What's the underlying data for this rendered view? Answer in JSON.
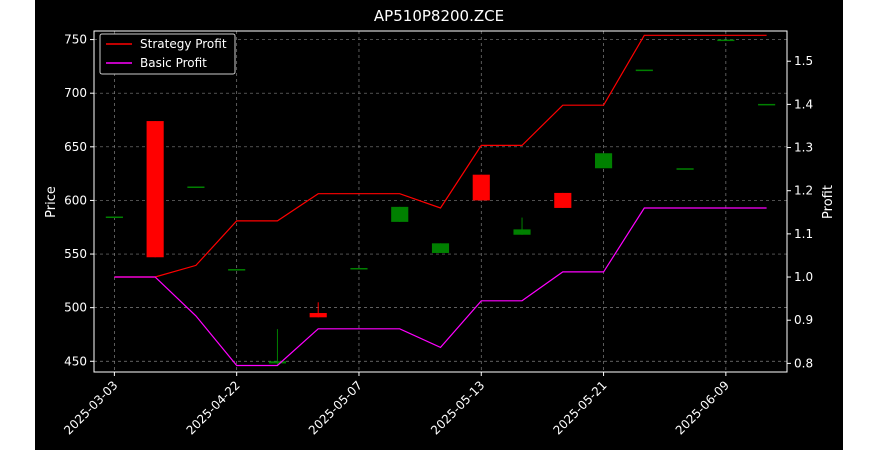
{
  "chart_data": {
    "type": "candlestick",
    "title": "AP510P8200.ZCE",
    "ylabel_left": "Price",
    "ylabel_right": "Profit",
    "x_tick_labels": [
      "2025-03-03",
      "2025-04-22",
      "2025-05-07",
      "2025-05-13",
      "2025-05-21",
      "2025-06-09"
    ],
    "y_left_ticks": [
      450,
      500,
      550,
      600,
      650,
      700,
      750
    ],
    "y_left_range": [
      440,
      758
    ],
    "y_right_ticks": [
      0.8,
      0.9,
      1.0,
      1.1,
      1.2,
      1.3,
      1.4,
      1.5
    ],
    "y_right_range": [
      0.78,
      1.57
    ],
    "grid": true,
    "legend": {
      "position": "top-left",
      "entries": [
        {
          "label": "Strategy Profit",
          "color": "#ff0000"
        },
        {
          "label": "Basic Profit",
          "color": "#ff00ff"
        }
      ]
    },
    "colors": {
      "background": "#000000",
      "up": "#008000",
      "down": "#ff0000",
      "grid": "#808080",
      "axis": "#ffffff"
    },
    "x_range": [
      -0.5,
      16.5
    ],
    "tick_index": [
      0,
      3,
      6,
      9,
      12,
      15
    ],
    "candles": [
      {
        "i": 0,
        "open": 585,
        "close": 585,
        "high": 585,
        "low": 585
      },
      {
        "i": 1,
        "open": 674,
        "close": 547,
        "high": 674,
        "low": 547
      },
      {
        "i": 2,
        "open": 613,
        "close": 613,
        "high": 613,
        "low": 613
      },
      {
        "i": 3,
        "open": 536,
        "close": 536,
        "high": 536,
        "low": 536
      },
      {
        "i": 4,
        "open": 448,
        "close": 450,
        "high": 480,
        "low": 446
      },
      {
        "i": 5,
        "open": 495,
        "close": 491,
        "high": 505,
        "low": 491
      },
      {
        "i": 6,
        "open": 537,
        "close": 537,
        "high": 537,
        "low": 537
      },
      {
        "i": 7,
        "open": 580,
        "close": 594,
        "high": 594,
        "low": 580
      },
      {
        "i": 8,
        "open": 551,
        "close": 560,
        "high": 560,
        "low": 551
      },
      {
        "i": 9,
        "open": 624,
        "close": 600,
        "high": 624,
        "low": 600
      },
      {
        "i": 10,
        "open": 568,
        "close": 573,
        "high": 584,
        "low": 568
      },
      {
        "i": 11,
        "open": 607,
        "close": 593,
        "high": 607,
        "low": 593
      },
      {
        "i": 12,
        "open": 630,
        "close": 644,
        "high": 644,
        "low": 630
      },
      {
        "i": 13,
        "open": 722,
        "close": 722,
        "high": 722,
        "low": 722
      },
      {
        "i": 14,
        "open": 630,
        "close": 630,
        "high": 630,
        "low": 630
      },
      {
        "i": 15,
        "open": 750,
        "close": 750,
        "high": 750,
        "low": 750
      },
      {
        "i": 16,
        "open": 690,
        "close": 690,
        "high": 690,
        "low": 690
      }
    ],
    "series": [
      {
        "name": "Strategy Profit",
        "color": "#ff0000",
        "points": [
          [
            0,
            1.0
          ],
          [
            1,
            1.0
          ],
          [
            2,
            1.027
          ],
          [
            3,
            1.13
          ],
          [
            4,
            1.13
          ],
          [
            5,
            1.193
          ],
          [
            6,
            1.193
          ],
          [
            7,
            1.193
          ],
          [
            8,
            1.16
          ],
          [
            9,
            1.305
          ],
          [
            10,
            1.305
          ],
          [
            11,
            1.398
          ],
          [
            12,
            1.398
          ],
          [
            13,
            1.56
          ],
          [
            14,
            1.56
          ],
          [
            15,
            1.56
          ],
          [
            16,
            1.56
          ]
        ]
      },
      {
        "name": "Basic Profit",
        "color": "#ff00ff",
        "points": [
          [
            0,
            1.0
          ],
          [
            1,
            1.0
          ],
          [
            2,
            0.91
          ],
          [
            3,
            0.795
          ],
          [
            4,
            0.795
          ],
          [
            5,
            0.88
          ],
          [
            6,
            0.88
          ],
          [
            7,
            0.88
          ],
          [
            8,
            0.837
          ],
          [
            9,
            0.945
          ],
          [
            10,
            0.945
          ],
          [
            11,
            1.012
          ],
          [
            12,
            1.012
          ],
          [
            13,
            1.16
          ],
          [
            14,
            1.16
          ],
          [
            15,
            1.16
          ],
          [
            16,
            1.16
          ]
        ]
      }
    ]
  }
}
